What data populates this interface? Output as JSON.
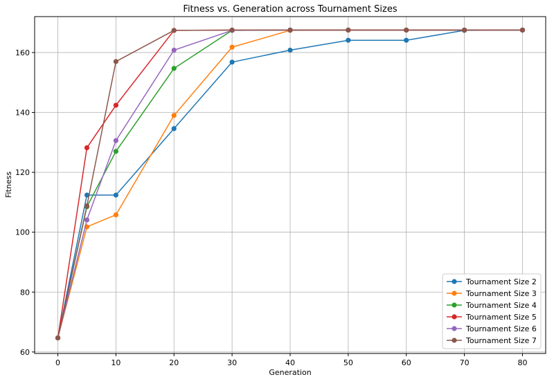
{
  "chart_data": {
    "type": "line",
    "title": "Fitness vs. Generation across Tournament Sizes",
    "xlabel": "Generation",
    "ylabel": "Fitness",
    "xlim": [
      -4,
      84
    ],
    "ylim": [
      59.5,
      172
    ],
    "xticks": [
      0,
      10,
      20,
      30,
      40,
      50,
      60,
      70,
      80
    ],
    "yticks": [
      60,
      80,
      100,
      120,
      140,
      160
    ],
    "grid": true,
    "legend_position": "lower-right",
    "x": [
      0,
      5,
      10,
      20,
      30,
      40,
      50,
      60,
      70,
      80
    ],
    "series": [
      {
        "name": "Tournament Size 2",
        "color": "#1f77b4",
        "values": [
          64.7,
          112.4,
          112.4,
          134.6,
          156.8,
          160.8,
          164.1,
          164.1,
          167.4,
          167.5
        ]
      },
      {
        "name": "Tournament Size 3",
        "color": "#ff7f0e",
        "values": [
          64.7,
          101.8,
          105.8,
          139.0,
          161.8,
          167.4,
          167.5,
          167.5,
          167.5,
          167.5
        ]
      },
      {
        "name": "Tournament Size 4",
        "color": "#2ca02c",
        "values": [
          64.7,
          108.5,
          127.0,
          154.7,
          167.4,
          167.5,
          167.5,
          167.5,
          167.5,
          167.5
        ]
      },
      {
        "name": "Tournament Size 5",
        "color": "#d62728",
        "values": [
          64.7,
          128.2,
          142.4,
          167.4,
          167.5,
          167.5,
          167.5,
          167.5,
          167.5,
          167.5
        ]
      },
      {
        "name": "Tournament Size 6",
        "color": "#9467bd",
        "values": [
          64.7,
          104.1,
          130.6,
          160.8,
          167.4,
          167.5,
          167.5,
          167.5,
          167.5,
          167.5
        ]
      },
      {
        "name": "Tournament Size 7",
        "color": "#8c564b",
        "values": [
          64.7,
          108.8,
          157.0,
          167.4,
          167.5,
          167.5,
          167.5,
          167.5,
          167.5,
          167.5
        ]
      }
    ]
  }
}
